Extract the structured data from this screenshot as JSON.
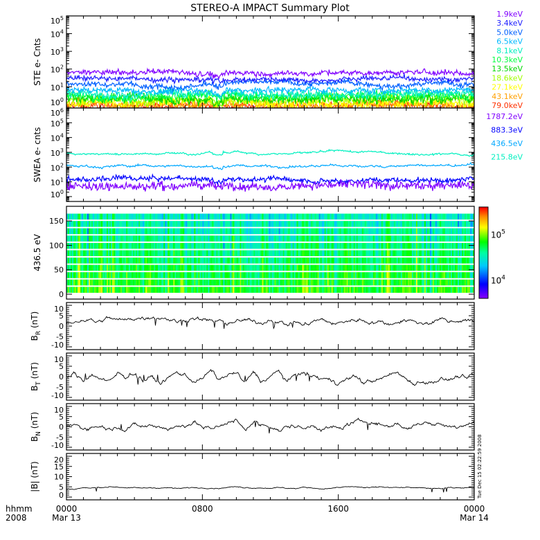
{
  "title": "STEREO-A IMPACT Summary Plot",
  "timestamp": "Tue Dec 15 02:22:59 2008",
  "chart_data": [
    {
      "type": "line",
      "id": "ste",
      "ylabel": "STE e- Cnts",
      "yscale": "log",
      "ylim_exp": [
        -0.2,
        5
      ],
      "yticks_exp": [
        0,
        1,
        2,
        3,
        4,
        5
      ],
      "series": [
        {
          "name": "1.9keV",
          "color": "#8000ff",
          "level": 60,
          "noise": 0.12
        },
        {
          "name": "3.4keV",
          "color": "#2020ff",
          "level": 30,
          "noise": 0.12
        },
        {
          "name": "5.0keV",
          "color": "#0060ff",
          "level": 15,
          "noise": 0.13
        },
        {
          "name": "6.5keV",
          "color": "#00b8ff",
          "level": 6.5,
          "noise": 0.15
        },
        {
          "name": "8.1keV",
          "color": "#00f0c0",
          "level": 4,
          "noise": 0.2
        },
        {
          "name": "10.3keV",
          "color": "#00ff40",
          "level": 3,
          "noise": 0.22
        },
        {
          "name": "13.5keV",
          "color": "#00d800",
          "level": 2.4,
          "noise": 0.25
        },
        {
          "name": "18.6keV",
          "color": "#a0ff00",
          "level": 1.8,
          "noise": 0.25
        },
        {
          "name": "27.1keV",
          "color": "#ffff00",
          "level": 1.3,
          "noise": 0.25
        },
        {
          "name": "43.1keV",
          "color": "#ffa000",
          "level": 1.0,
          "noise": 0.25
        },
        {
          "name": "79.0keV",
          "color": "#ff3000",
          "level": 0.8,
          "noise": 0.2
        }
      ]
    },
    {
      "type": "line",
      "id": "swea",
      "ylabel": "SWEA e- cnts",
      "yscale": "log",
      "ylim_exp": [
        -0.33,
        6
      ],
      "yticks_exp": [
        0,
        1,
        2,
        3,
        4,
        5,
        6
      ],
      "series": [
        {
          "name": "1787.2eV",
          "color": "#8000ff",
          "level": 6,
          "noise": 0.25
        },
        {
          "name": "883.3eV",
          "color": "#0000ff",
          "level": 15,
          "noise": 0.15
        },
        {
          "name": "436.5eV",
          "color": "#00a8ff",
          "level": 120,
          "noise": 0.05
        },
        {
          "name": "215.8eV",
          "color": "#00f0c0",
          "level": 900,
          "noise": 0.04
        }
      ]
    },
    {
      "type": "heatmap",
      "id": "pad",
      "ylabel": "436.5 eV",
      "ylim": [
        -10,
        180
      ],
      "yticks": [
        0,
        50,
        100,
        150
      ],
      "colorbar": {
        "scale": "log",
        "ticks_exp": [
          4,
          5
        ],
        "range_exp": [
          3.6,
          5.6
        ]
      }
    },
    {
      "type": "line",
      "id": "br",
      "ylabel": "B",
      "ysub": "R",
      "yunit": " (nT)",
      "ylim": [
        -10,
        10
      ],
      "yticks": [
        -10,
        -5,
        0,
        5,
        10
      ],
      "values": [
        1,
        2,
        3,
        3,
        2,
        4,
        3,
        3,
        4,
        4,
        5,
        4,
        3,
        2,
        3,
        4,
        3,
        3,
        2,
        1,
        2,
        3,
        2,
        2,
        3,
        2,
        1,
        2,
        1,
        2,
        3,
        2,
        1,
        2,
        3,
        3,
        2,
        2,
        1,
        2,
        3,
        2,
        1,
        2,
        3,
        2,
        2,
        3,
        2
      ]
    },
    {
      "type": "line",
      "id": "bt",
      "ylabel": "B",
      "ysub": "T",
      "yunit": " (nT)",
      "ylim": [
        -10,
        10
      ],
      "yticks": [
        -10,
        -5,
        0,
        5,
        10
      ],
      "values": [
        0,
        1,
        -2,
        1,
        -1,
        -3,
        1,
        0,
        2,
        -2,
        0,
        -3,
        -1,
        2,
        1,
        -2,
        -1,
        3,
        -2,
        1,
        2,
        -3,
        2,
        -2,
        0,
        3,
        -3,
        1,
        2,
        0,
        -1,
        -2,
        -3,
        -1,
        0,
        -3,
        -2,
        -1,
        1,
        2,
        -1,
        -3,
        -2,
        -3,
        -1,
        -2,
        0,
        -1,
        1
      ]
    },
    {
      "type": "line",
      "id": "bn",
      "ylabel": "B",
      "ysub": "N",
      "yunit": " (nT)",
      "ylim": [
        -10,
        10
      ],
      "yticks": [
        -10,
        -5,
        0,
        5,
        10
      ],
      "values": [
        0,
        1,
        -1,
        0,
        1,
        -1,
        0,
        -1,
        1,
        0,
        1,
        0,
        -1,
        0,
        1,
        2,
        0,
        -1,
        1,
        2,
        3,
        -1,
        2,
        1,
        0,
        -2,
        0,
        1,
        -1,
        2,
        -2,
        0,
        -1,
        1,
        2,
        3,
        2,
        1,
        0,
        2,
        -1,
        1,
        2,
        1,
        2,
        1,
        0,
        1,
        2
      ]
    },
    {
      "type": "line",
      "id": "bmag",
      "ylabel": "|B|",
      "ysub": "",
      "yunit": " (nT)",
      "ylim": [
        0,
        20
      ],
      "yticks": [
        0,
        5,
        10,
        15,
        20
      ],
      "values": [
        4,
        4,
        4.5,
        4.5,
        4.8,
        5,
        5,
        4.8,
        4.5,
        4.5,
        4.6,
        4.5,
        4.5,
        4.3,
        4.5,
        4.6,
        4.5,
        4.5,
        4.3,
        4.8,
        5,
        4.7,
        4.5,
        4.5,
        4.4,
        4.5,
        4.3,
        4.2,
        4.8,
        4.5,
        4,
        4.3,
        4.6,
        5,
        5,
        4.6,
        4.7,
        5,
        4.8,
        4.6,
        4.8,
        4.5,
        4.3,
        4.2,
        4.3,
        4.6,
        4.5,
        4.7,
        4.5
      ]
    }
  ],
  "xaxis": {
    "row1_label": "hhmm",
    "row2_label": "2008",
    "ticks": [
      {
        "hour": 0,
        "time": "0000",
        "date": "Mar 13"
      },
      {
        "hour": 8,
        "time": "0800",
        "date": ""
      },
      {
        "hour": 16,
        "time": "1600",
        "date": ""
      },
      {
        "hour": 24,
        "time": "0000",
        "date": "Mar 14"
      }
    ]
  }
}
